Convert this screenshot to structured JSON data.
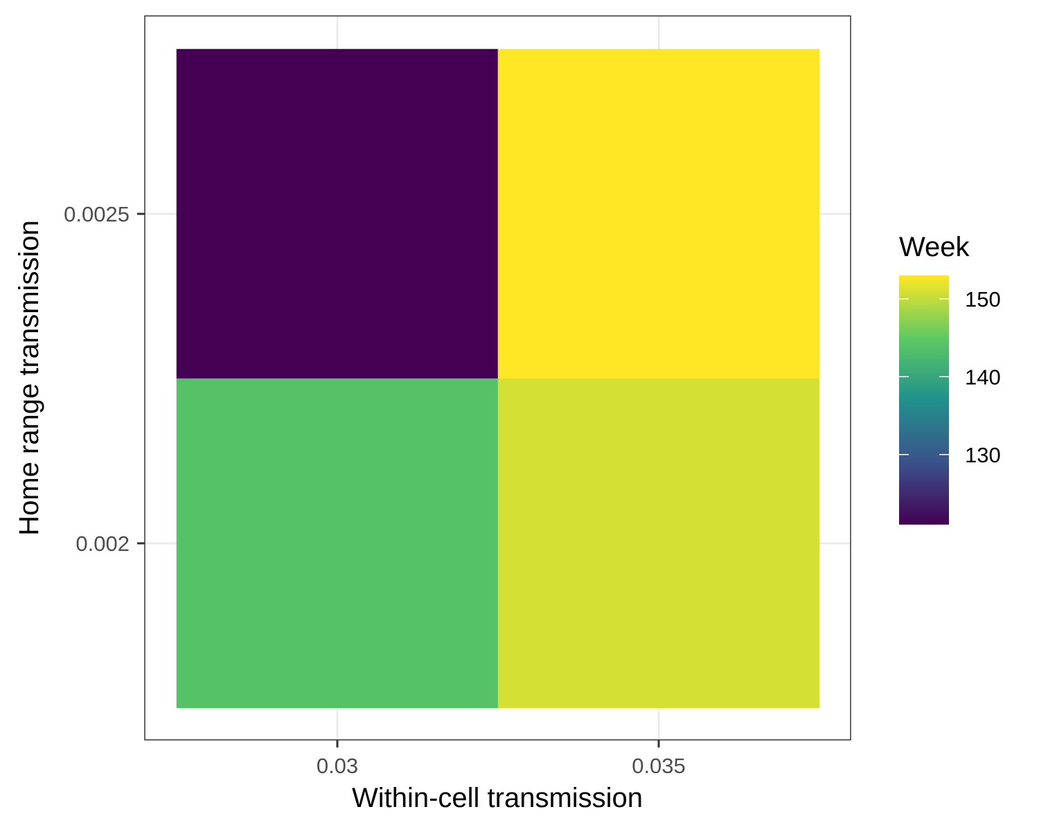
{
  "chart_data": {
    "type": "heatmap",
    "title": "",
    "xlabel": "Within-cell transmission",
    "ylabel": "Home range transmission",
    "x_categories": [
      "0.03",
      "0.035"
    ],
    "y_categories": [
      "0.002",
      "0.0025"
    ],
    "x_ticks": [
      "0.03",
      "0.035"
    ],
    "y_ticks": [
      "0.002",
      "0.0025"
    ],
    "cells": [
      {
        "x": "0.03",
        "y": "0.0025",
        "value": 121
      },
      {
        "x": "0.035",
        "y": "0.0025",
        "value": 153
      },
      {
        "x": "0.03",
        "y": "0.002",
        "value": 144
      },
      {
        "x": "0.035",
        "y": "0.002",
        "value": 151
      }
    ],
    "legend": {
      "title": "Week",
      "position": "right",
      "ticks": [
        "130",
        "140",
        "150"
      ],
      "range": [
        121,
        153
      ],
      "colormap": "viridis"
    },
    "grid": true,
    "colors": {
      "panel_border": "#333333",
      "grid": "#ebebeb",
      "tick_text": "#4d4d4d",
      "axis_title": "#000000"
    }
  }
}
